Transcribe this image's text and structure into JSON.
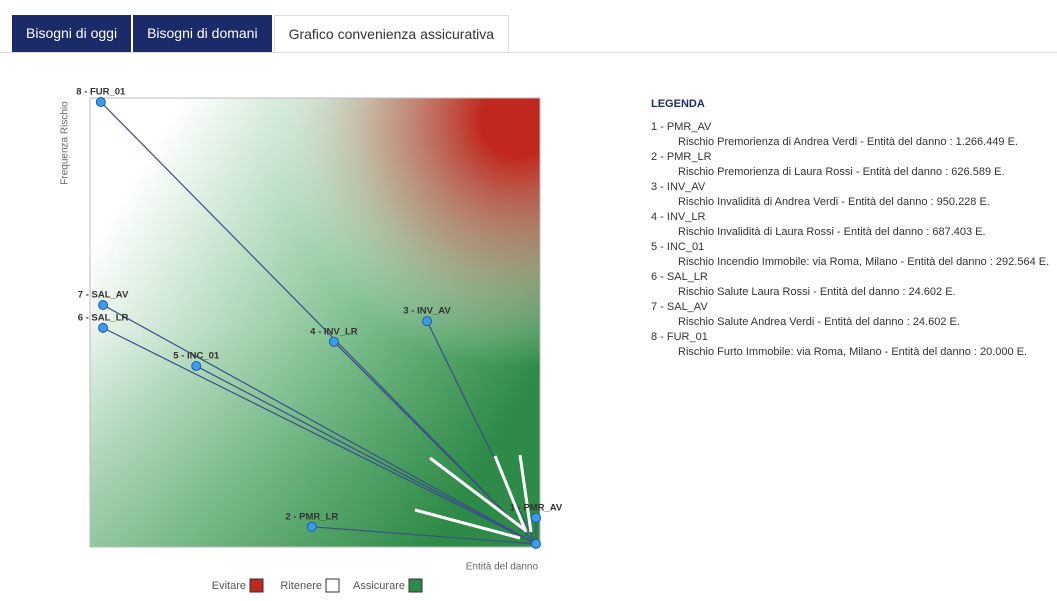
{
  "tabs": [
    "Bisogni di oggi",
    "Bisogni di domani",
    "Grafico convenienza assicurativa"
  ],
  "chart_data": {
    "type": "scatter",
    "x_label": "Entità del danno",
    "y_label": "Frequenza Rischio",
    "xlim": [
      0,
      100
    ],
    "ylim": [
      0,
      100
    ],
    "points": [
      {
        "label": "1 - PMR_AV",
        "x": 99.1,
        "y": 6.5
      },
      {
        "label": "2 - PMR_LR",
        "x": 49.3,
        "y": 4.5
      },
      {
        "label": "3 - INV_AV",
        "x": 74.9,
        "y": 50.3
      },
      {
        "label": "4 - INV_LR",
        "x": 54.2,
        "y": 45.7
      },
      {
        "label": "5 - INC_01",
        "x": 23.6,
        "y": 40.3
      },
      {
        "label": "6 - SAL_LR",
        "x": 2.9,
        "y": 48.8
      },
      {
        "label": "7 - SAL_AV",
        "x": 2.9,
        "y": 53.9
      },
      {
        "label": "8 - FUR_01",
        "x": 2.4,
        "y": 99.1
      }
    ],
    "anchor": {
      "x": 99.1,
      "y": 0.7
    },
    "zones": [
      {
        "name": "Evitare",
        "color": "#c0281f"
      },
      {
        "name": "Ritenere",
        "color": "#ffffff"
      },
      {
        "name": "Assicurare",
        "color": "#2e8b47"
      }
    ]
  },
  "legenda": {
    "title": "LEGENDA",
    "items": [
      {
        "code": "1 - PMR_AV",
        "desc": "Rischio Premorienza di Andrea Verdi - Entità del danno : 1.266.449 E."
      },
      {
        "code": "2 - PMR_LR",
        "desc": "Rischio Premorienza di Laura Rossi - Entità del danno : 626.589 E."
      },
      {
        "code": "3 - INV_AV",
        "desc": "Rischio Invalidità di Andrea Verdi - Entità del danno : 950.228 E."
      },
      {
        "code": "4 - INV_LR",
        "desc": "Rischio Invalidità di Laura Rossi - Entità del danno : 687.403 E."
      },
      {
        "code": "5 - INC_01",
        "desc": "Rischio Incendio Immobile: via Roma, Milano - Entità del danno : 292.564 E."
      },
      {
        "code": "6 - SAL_LR",
        "desc": "Rischio Salute Laura Rossi - Entità del danno : 24.602 E."
      },
      {
        "code": "7 - SAL_AV",
        "desc": "Rischio Salute Andrea Verdi - Entità del danno : 24.602 E."
      },
      {
        "code": "8 - FUR_01",
        "desc": "Rischio Furto Immobile: via Roma, Milano - Entità del danno : 20.000 E."
      }
    ]
  }
}
